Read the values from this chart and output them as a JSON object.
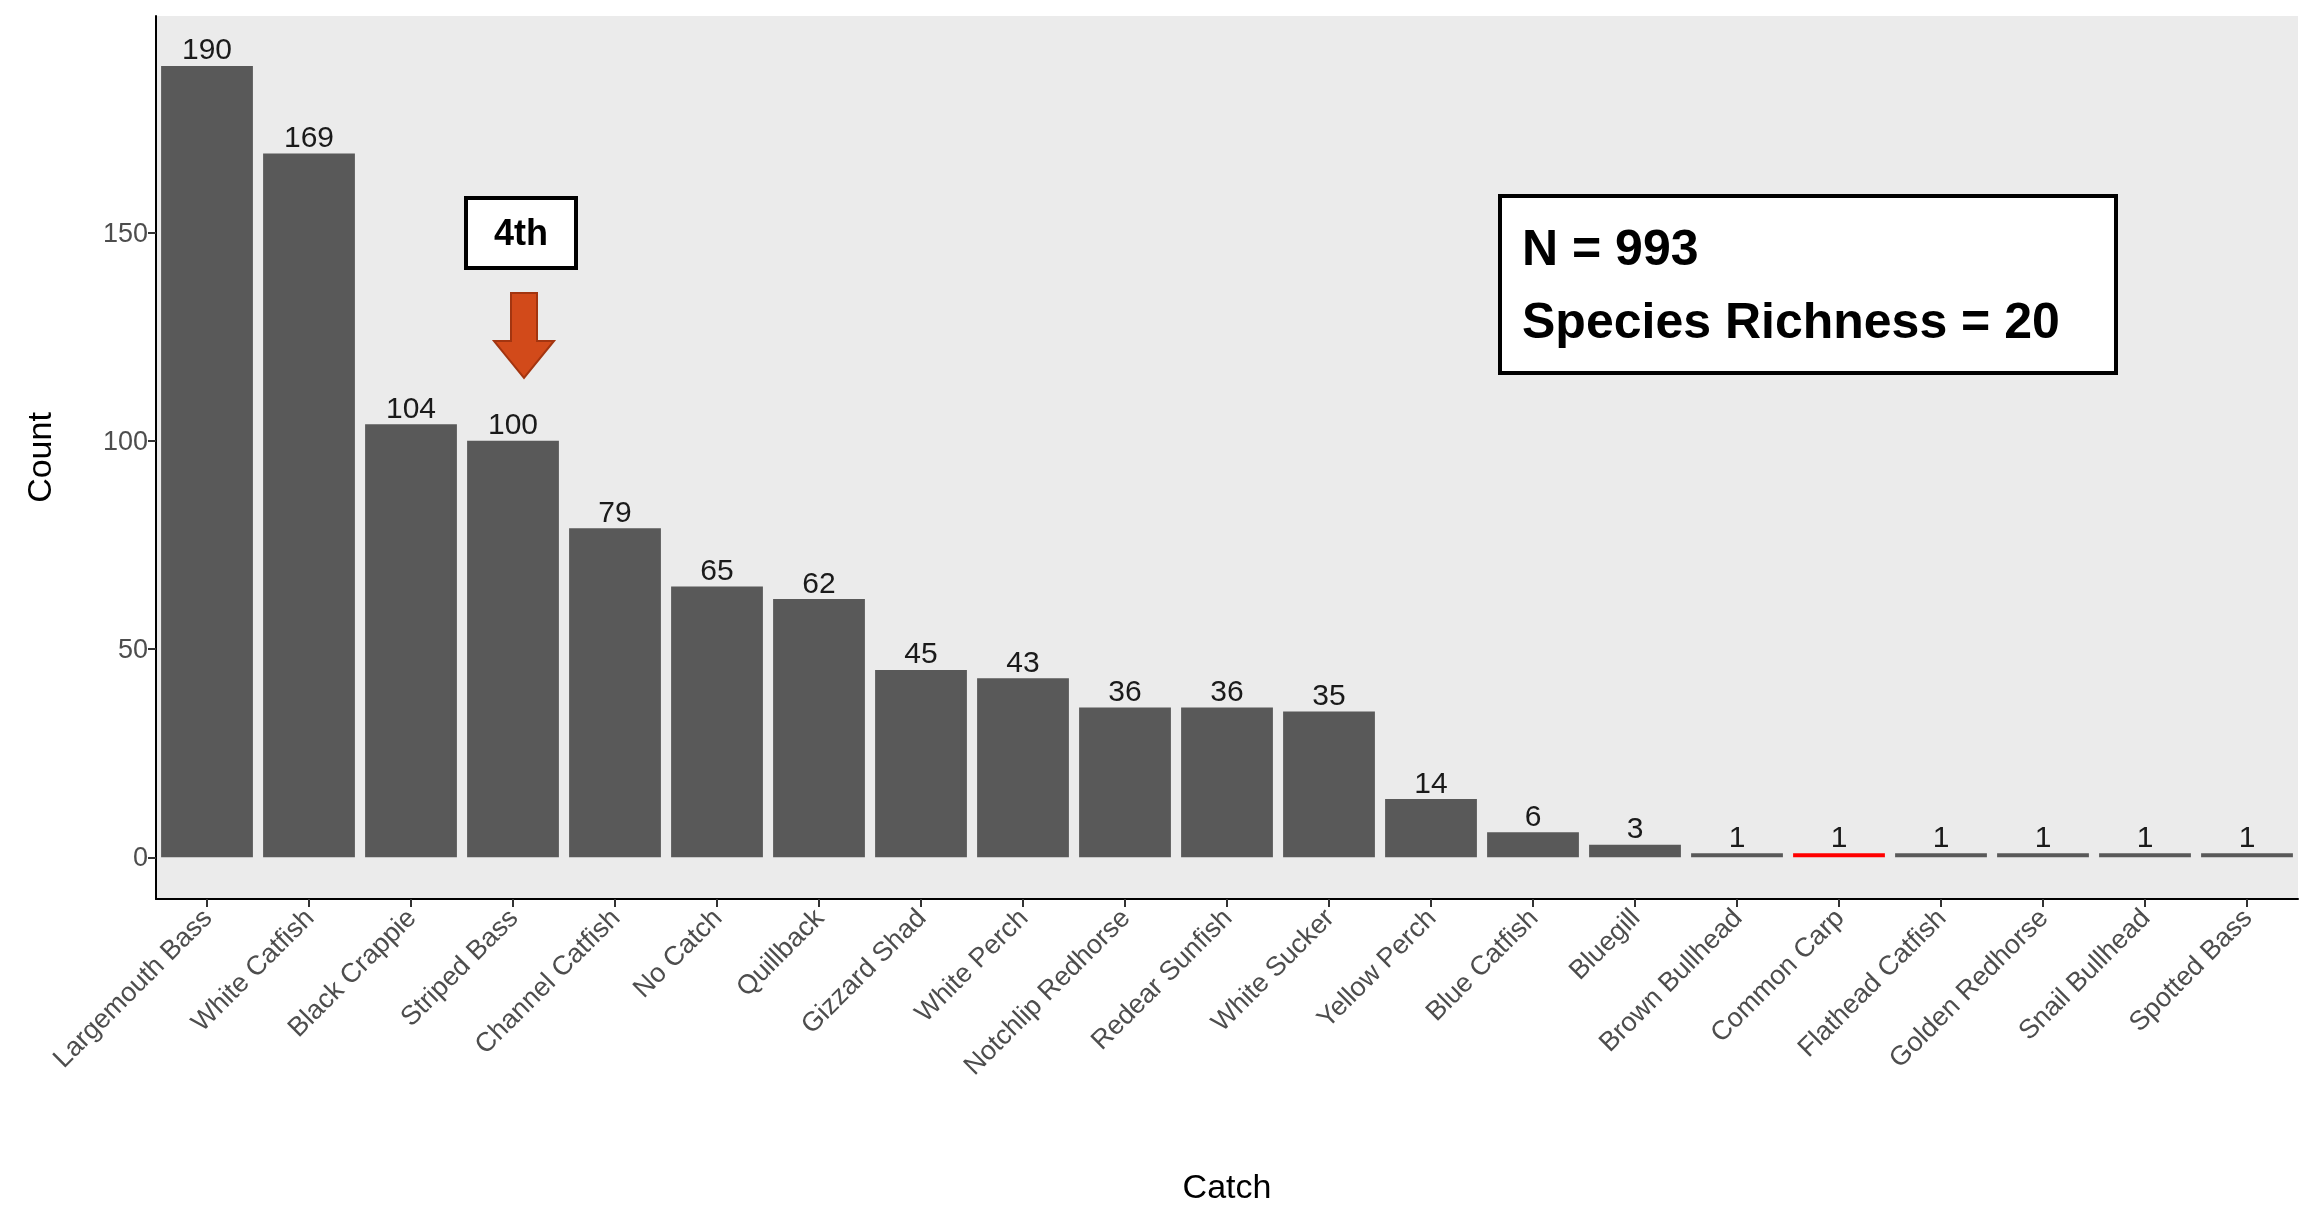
{
  "chart_data": {
    "type": "bar",
    "xlabel": "Catch",
    "ylabel": "Count",
    "categories": [
      "Largemouth Bass",
      "White Catfish",
      "Black Crappie",
      "Striped Bass",
      "Channel Catfish",
      "No Catch",
      "Quillback",
      "Gizzard Shad",
      "White Perch",
      "Notchlip Redhorse",
      "Redear Sunfish",
      "White Sucker",
      "Yellow Perch",
      "Blue Catfish",
      "Bluegill",
      "Brown Bullhead",
      "Common Carp",
      "Flathead Catfish",
      "Golden Redhorse",
      "Snail Bullhead",
      "Spotted Bass"
    ],
    "values": [
      190,
      169,
      104,
      100,
      79,
      65,
      62,
      45,
      43,
      36,
      36,
      35,
      14,
      6,
      3,
      1,
      1,
      1,
      1,
      1,
      1
    ],
    "colors": [
      "#595959",
      "#595959",
      "#595959",
      "#595959",
      "#595959",
      "#595959",
      "#595959",
      "#595959",
      "#595959",
      "#595959",
      "#595959",
      "#595959",
      "#595959",
      "#595959",
      "#595959",
      "#595959",
      "#ff0000",
      "#595959",
      "#595959",
      "#595959",
      "#595959"
    ],
    "data_labels": true,
    "ylim": [
      -10,
      202
    ],
    "yticks": [
      0,
      50,
      100,
      150
    ],
    "grid": false,
    "annotations": [
      "4th",
      "N = 993",
      "Species Richness = 20"
    ]
  }
}
